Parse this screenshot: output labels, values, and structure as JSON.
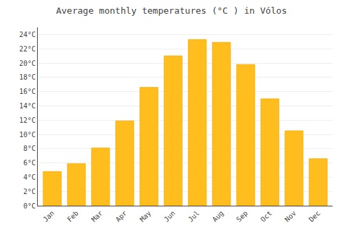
{
  "chart_data": {
    "type": "bar",
    "title": "Average monthly temperatures (°C ) in Vólos",
    "categories": [
      "Jan",
      "Feb",
      "Mar",
      "Apr",
      "May",
      "Jun",
      "Jul",
      "Aug",
      "Sep",
      "Oct",
      "Nov",
      "Dec"
    ],
    "values": [
      4.8,
      5.9,
      8.1,
      11.9,
      16.6,
      21.0,
      23.3,
      22.9,
      19.8,
      15.0,
      10.5,
      6.6
    ],
    "color": "#FFBE1E",
    "ylim": [
      0,
      25
    ],
    "yticks": [
      {
        "value": 0,
        "label": "0°C"
      },
      {
        "value": 2,
        "label": "2°C"
      },
      {
        "value": 4,
        "label": "4°C"
      },
      {
        "value": 6,
        "label": "6°C"
      },
      {
        "value": 8,
        "label": "8°C"
      },
      {
        "value": 10,
        "label": "10°C"
      },
      {
        "value": 12,
        "label": "12°C"
      },
      {
        "value": 14,
        "label": "14°C"
      },
      {
        "value": 16,
        "label": "16°C"
      },
      {
        "value": 18,
        "label": "18°C"
      },
      {
        "value": 20,
        "label": "20°C"
      },
      {
        "value": 22,
        "label": "22°C"
      },
      {
        "value": 24,
        "label": "24°C"
      }
    ],
    "grid": true
  }
}
